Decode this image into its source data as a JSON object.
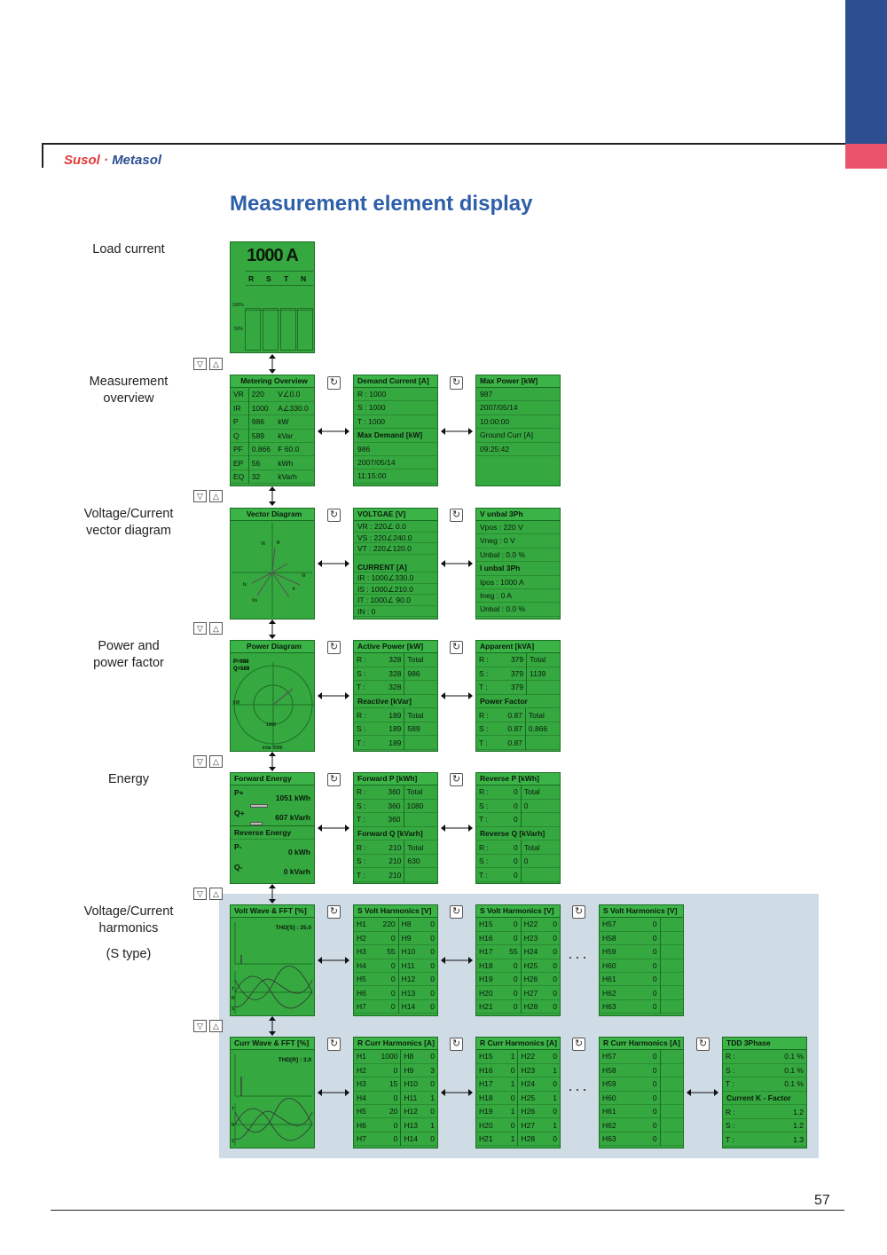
{
  "header": {
    "brand_left": "Susol",
    "brand_dot": "·",
    "brand_right": "Metasol"
  },
  "title": "Measurement element display",
  "page_number": "57",
  "labels": {
    "load_current": "Load current",
    "meas_overview_1": "Measurement",
    "meas_overview_2": "overview",
    "vector_1": "Voltage/Current",
    "vector_2": "vector diagram",
    "power_1": "Power and",
    "power_2": "power factor",
    "energy": "Energy",
    "harm_1": "Voltage/Current",
    "harm_2": "harmonics",
    "harm_3": "(S type)"
  },
  "nav": {
    "down": "▽",
    "up": "△",
    "cycle": "↻",
    "dots": "···"
  },
  "load": {
    "value": "1000 A",
    "phases": [
      "R",
      "S",
      "T",
      "N"
    ],
    "pct100": "100%",
    "pct50": "50%"
  },
  "metering": {
    "title": "Metering Overview",
    "rows": [
      [
        "VR",
        "220",
        "V∠0.0"
      ],
      [
        "IR",
        "1000",
        "A∠330.0"
      ],
      [
        "P",
        "986",
        "kW"
      ],
      [
        "Q",
        "589",
        "kVar"
      ],
      [
        "PF",
        "0.866",
        "F 60.0"
      ],
      [
        "EP",
        "56",
        "kWh"
      ],
      [
        "EQ",
        "32",
        "kVarh"
      ]
    ]
  },
  "demand": {
    "title": "Demand Current [A]",
    "rows": [
      "R  :    1000",
      "S  :    1000",
      "T  :    1000"
    ],
    "sub": "Max Demand [kW]",
    "rows2": [
      "986",
      "2007/05/14",
      "11:15:00"
    ]
  },
  "maxpower": {
    "title": "Max Power [kW]",
    "rows": [
      "987",
      "2007/05/14",
      "10:00:00",
      "Ground Curr [A]",
      "09:25:42"
    ]
  },
  "vector": {
    "title": "Vector Diagram",
    "lbl_vt": "Vt",
    "lbl_r": "R",
    "lbl_vr": "Vr",
    "lbl_is": "Is",
    "lbl_vs": "Vs",
    "lbl_ir": "Ir"
  },
  "voltage": {
    "title": "VOLTGAE [V]",
    "rows": [
      "VR  :     220∠   0.0",
      "VS  :     220∠240.0",
      "VT  :     220∠120.0"
    ],
    "sub": "CURRENT [A]",
    "rows2": [
      "IR   :    1000∠330.0",
      "IS   :    1000∠210.0",
      "IT   :    1000∠  90.0",
      "IN   :         0"
    ]
  },
  "unbal": {
    "title": "V unbal 3Ph",
    "rows": [
      "Vpos  :   220   V",
      "Vneg  :       0   V",
      "Unbal :   0.0   %"
    ],
    "sub": "I unbal 3Ph",
    "rows2": [
      "Ipos  :  1000   A",
      "Ineg  :       0   A",
      "Unbal :   0.0   %"
    ]
  },
  "powerdiag": {
    "title": "Power Diagram",
    "p": "P=988",
    "q": "Q=589",
    "kw": "kW",
    "k1000": "1000",
    "kvar": "kVar 2000"
  },
  "active": {
    "title": "Active Power [kW]",
    "rows": [
      [
        "R  :",
        "328",
        "Total"
      ],
      [
        "S  :",
        "328",
        "986"
      ],
      [
        "T  :",
        "328",
        ""
      ]
    ],
    "sub": "Reactive [kVar]",
    "rows2": [
      [
        "R  :",
        "189",
        "Total"
      ],
      [
        "S  :",
        "189",
        "589"
      ],
      [
        "T  :",
        "189",
        ""
      ]
    ]
  },
  "apparent": {
    "title": "Apparent [kVA]",
    "rows": [
      [
        "R  :",
        "379",
        "Total"
      ],
      [
        "S  :",
        "379",
        "1139"
      ],
      [
        "T  :",
        "379",
        ""
      ]
    ],
    "sub": "Power Factor",
    "rows2": [
      [
        "R  :",
        "0.87",
        "Total"
      ],
      [
        "S  :",
        "0.87",
        "0.866"
      ],
      [
        "T  :",
        "0.87",
        ""
      ]
    ]
  },
  "fwdenergy": {
    "title": "Forward Energy",
    "p_label": "P+",
    "p_val": "1051 kWh",
    "q_label": "Q+",
    "q_val": "607 kVarh",
    "sub": "Reverse Energy",
    "pm_label": "P-",
    "pm_val": "0 kWh",
    "qm_label": "Q-",
    "qm_val": "0 kVarh"
  },
  "fwdp": {
    "title": "Forward P [kWh]",
    "rows": [
      [
        "R  :",
        "360",
        "Total"
      ],
      [
        "S  :",
        "360",
        "1080"
      ],
      [
        "T  :",
        "360",
        ""
      ]
    ],
    "sub": "Forward Q [kVarh]",
    "rows2": [
      [
        "R  :",
        "210",
        "Total"
      ],
      [
        "S  :",
        "210",
        "630"
      ],
      [
        "T  :",
        "210",
        ""
      ]
    ]
  },
  "revp": {
    "title": "Reverse P [kWh]",
    "rows": [
      [
        "R  :",
        "0",
        "Total"
      ],
      [
        "S  :",
        "0",
        "0"
      ],
      [
        "T  :",
        "0",
        ""
      ]
    ],
    "sub": "Reverse Q [kVarh]",
    "rows2": [
      [
        "R  :",
        "0",
        "Total"
      ],
      [
        "S  :",
        "0",
        "0"
      ],
      [
        "T  :",
        "0",
        ""
      ]
    ]
  },
  "voltwave": {
    "title": "Volt Wave & FFT [%]",
    "thd": "THD[S] : 25.0",
    "t": "T",
    "r": "R",
    "s": "S"
  },
  "currwave": {
    "title": "Curr Wave & FFT [%]",
    "thd": "THD[R] : 3.0",
    "t": "T",
    "r": "R",
    "s": "S"
  },
  "svolt1": {
    "title": "S Volt Harmonics [V]",
    "rows": [
      [
        "H1",
        "220",
        "H8",
        "0"
      ],
      [
        "H2",
        "0",
        "H9",
        "0"
      ],
      [
        "H3",
        "55",
        "H10",
        "0"
      ],
      [
        "H4",
        "0",
        "H11",
        "0"
      ],
      [
        "H5",
        "0",
        "H12",
        "0"
      ],
      [
        "H6",
        "0",
        "H13",
        "0"
      ],
      [
        "H7",
        "0",
        "H14",
        "0"
      ]
    ]
  },
  "svolt2": {
    "title": "S Volt Harmonics [V]",
    "rows": [
      [
        "H15",
        "0",
        "H22",
        "0"
      ],
      [
        "H16",
        "0",
        "H23",
        "0"
      ],
      [
        "H17",
        "55",
        "H24",
        "0"
      ],
      [
        "H18",
        "0",
        "H25",
        "0"
      ],
      [
        "H19",
        "0",
        "H26",
        "0"
      ],
      [
        "H20",
        "0",
        "H27",
        "0"
      ],
      [
        "H21",
        "0",
        "H28",
        "0"
      ]
    ]
  },
  "svolt3": {
    "title": "S Volt Harmonics [V]",
    "rows": [
      [
        "H57",
        "0",
        "",
        ""
      ],
      [
        "H58",
        "0",
        "",
        ""
      ],
      [
        "H59",
        "0",
        "",
        ""
      ],
      [
        "H60",
        "0",
        "",
        ""
      ],
      [
        "H61",
        "0",
        "",
        ""
      ],
      [
        "H62",
        "0",
        "",
        ""
      ],
      [
        "H63",
        "0",
        "",
        ""
      ]
    ]
  },
  "rcurr1": {
    "title": "R Curr Harmonics [A]",
    "rows": [
      [
        "H1",
        "1000",
        "H8",
        "0"
      ],
      [
        "H2",
        "0",
        "H9",
        "3"
      ],
      [
        "H3",
        "15",
        "H10",
        "0"
      ],
      [
        "H4",
        "0",
        "H11",
        "1"
      ],
      [
        "H5",
        "20",
        "H12",
        "0"
      ],
      [
        "H6",
        "0",
        "H13",
        "1"
      ],
      [
        "H7",
        "0",
        "H14",
        "0"
      ]
    ]
  },
  "rcurr2": {
    "title": "R Curr Harmonics [A]",
    "rows": [
      [
        "H15",
        "1",
        "H22",
        "0"
      ],
      [
        "H16",
        "0",
        "H23",
        "1"
      ],
      [
        "H17",
        "1",
        "H24",
        "0"
      ],
      [
        "H18",
        "0",
        "H25",
        "1"
      ],
      [
        "H19",
        "1",
        "H26",
        "0"
      ],
      [
        "H20",
        "0",
        "H27",
        "1"
      ],
      [
        "H21",
        "1",
        "H28",
        "0"
      ]
    ]
  },
  "rcurr3": {
    "title": "R Curr Harmonics [A]",
    "rows": [
      [
        "H57",
        "0",
        "",
        ""
      ],
      [
        "H58",
        "0",
        "",
        ""
      ],
      [
        "H59",
        "0",
        "",
        ""
      ],
      [
        "H60",
        "0",
        "",
        ""
      ],
      [
        "H61",
        "0",
        "",
        ""
      ],
      [
        "H62",
        "0",
        "",
        ""
      ],
      [
        "H63",
        "0",
        "",
        ""
      ]
    ]
  },
  "tdd": {
    "title": "TDD 3Phase",
    "rows": [
      [
        "R  :",
        "0.1 %"
      ],
      [
        "S  :",
        "0.1 %"
      ],
      [
        "T  :",
        "0.1 %"
      ]
    ],
    "sub": "Current K - Factor",
    "rows2": [
      [
        "R  :",
        "1.2"
      ],
      [
        "S  :",
        "1.2"
      ],
      [
        "T  :",
        "1.3"
      ]
    ]
  },
  "colors": {
    "screen": "#35a840",
    "brand_blue": "#2d4f91",
    "accent_red": "#e9546b",
    "title_blue": "#2d5fa8",
    "harm_bg": "#cfdbe5"
  }
}
